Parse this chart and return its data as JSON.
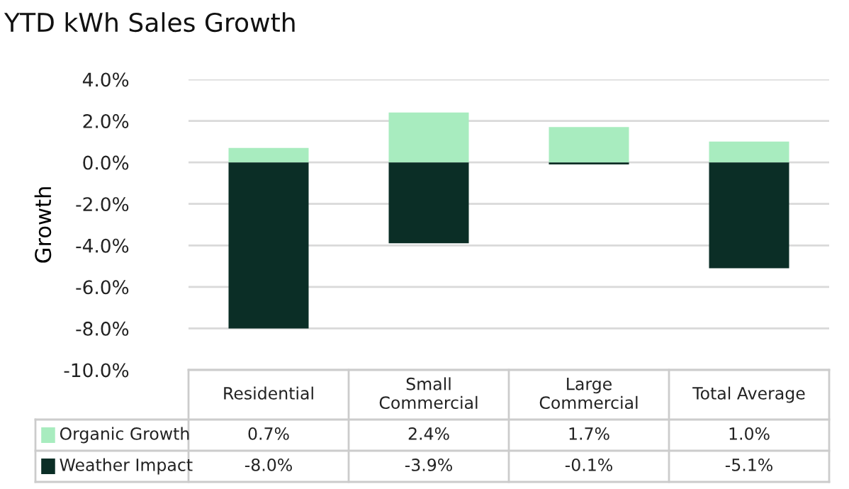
{
  "chart_data": {
    "type": "bar",
    "title": "YTD kWh Sales Growth",
    "ylabel": "Growth",
    "categories": [
      "Residential",
      "Small\nCommercial",
      "Large\nCommercial",
      "Total Average"
    ],
    "series": [
      {
        "name": "Organic Growth",
        "color": "#a8ecbf",
        "values": [
          0.7,
          2.4,
          1.7,
          1.0
        ],
        "value_labels": [
          "0.7%",
          "2.4%",
          "1.7%",
          "1.0%"
        ]
      },
      {
        "name": "Weather Impact",
        "color": "#0b2e26",
        "values": [
          -8.0,
          -3.9,
          -0.1,
          -5.1
        ],
        "value_labels": [
          "-8.0%",
          "-3.9%",
          "-0.1%",
          "-5.1%"
        ]
      }
    ],
    "stacked": true,
    "legend": "bottom",
    "grid": "y",
    "ylim": [
      -10,
      4
    ],
    "yticks": [
      {
        "value": -10,
        "label": "-10.0%"
      },
      {
        "value": -8,
        "label": "-8.0%"
      },
      {
        "value": -6,
        "label": "-6.0%"
      },
      {
        "value": -4,
        "label": "-4.0%"
      },
      {
        "value": -2,
        "label": "-2.0%"
      },
      {
        "value": 0,
        "label": "0.0%"
      },
      {
        "value": 2,
        "label": "2.0%"
      },
      {
        "value": 4,
        "label": "4.0%"
      }
    ]
  }
}
